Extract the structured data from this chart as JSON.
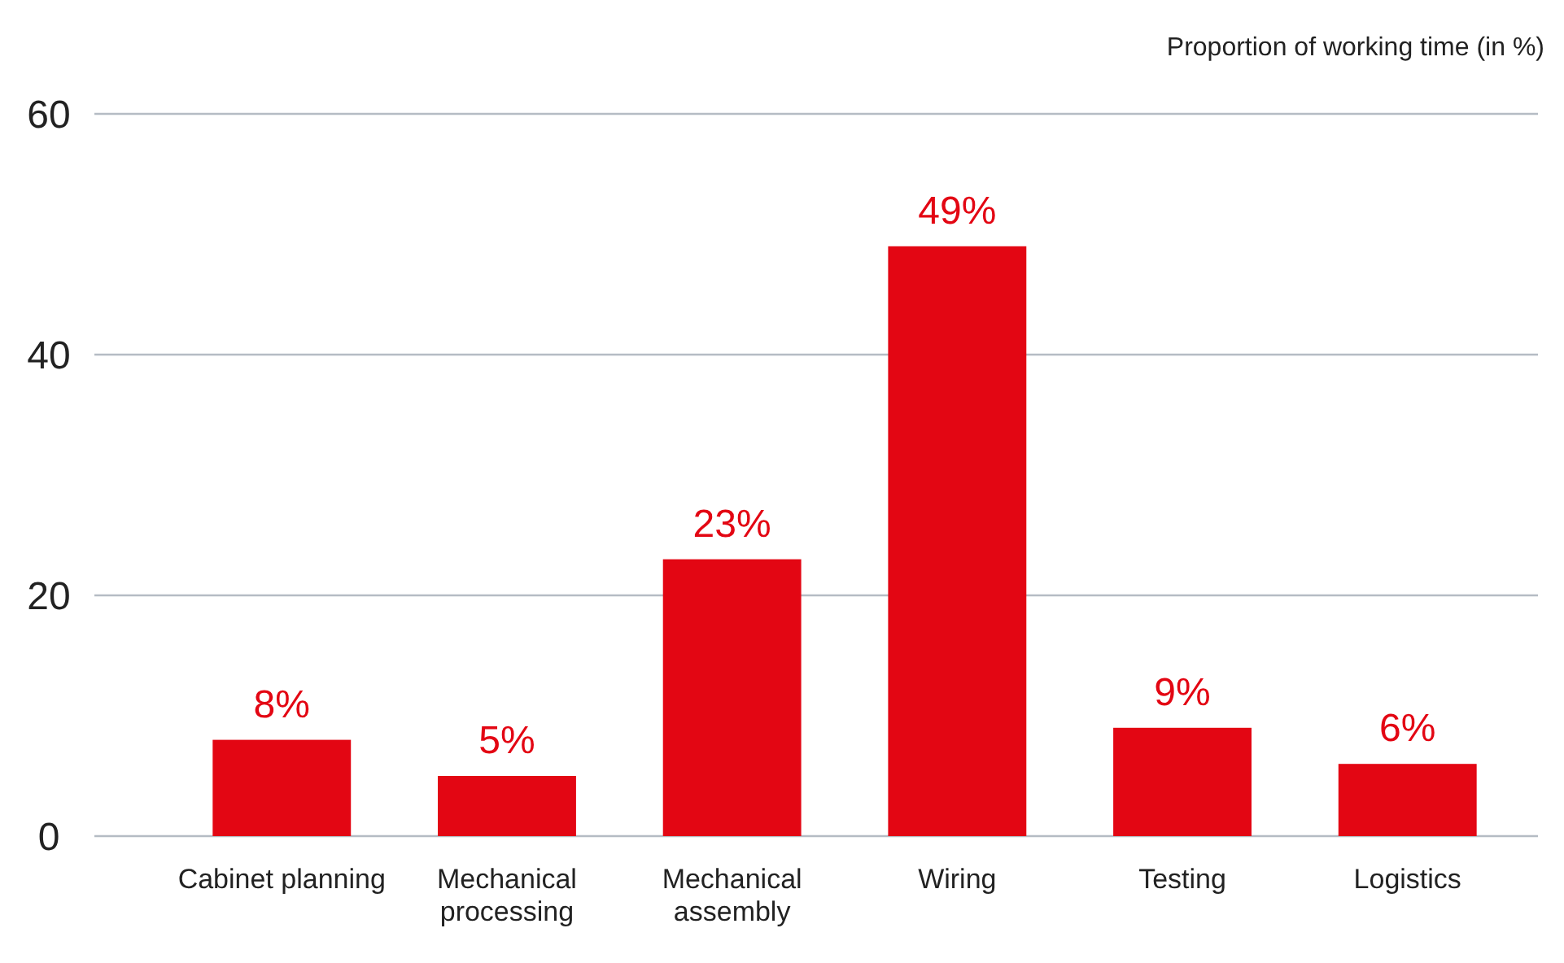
{
  "chart_data": {
    "type": "bar",
    "ylabel": "Proportion of working time (in %)",
    "categories": [
      "Cabinet planning",
      "Mechanical processing",
      "Mechanical assembly",
      "Wiring",
      "Testing",
      "Logistics"
    ],
    "values": [
      8,
      5,
      23,
      49,
      9,
      6
    ],
    "value_labels": [
      "8%",
      "5%",
      "23%",
      "49%",
      "9%",
      "6%"
    ],
    "color": "#e30613",
    "ylim": [
      0,
      60
    ],
    "yticks": [
      0,
      20,
      40,
      60
    ],
    "grid": "y"
  }
}
